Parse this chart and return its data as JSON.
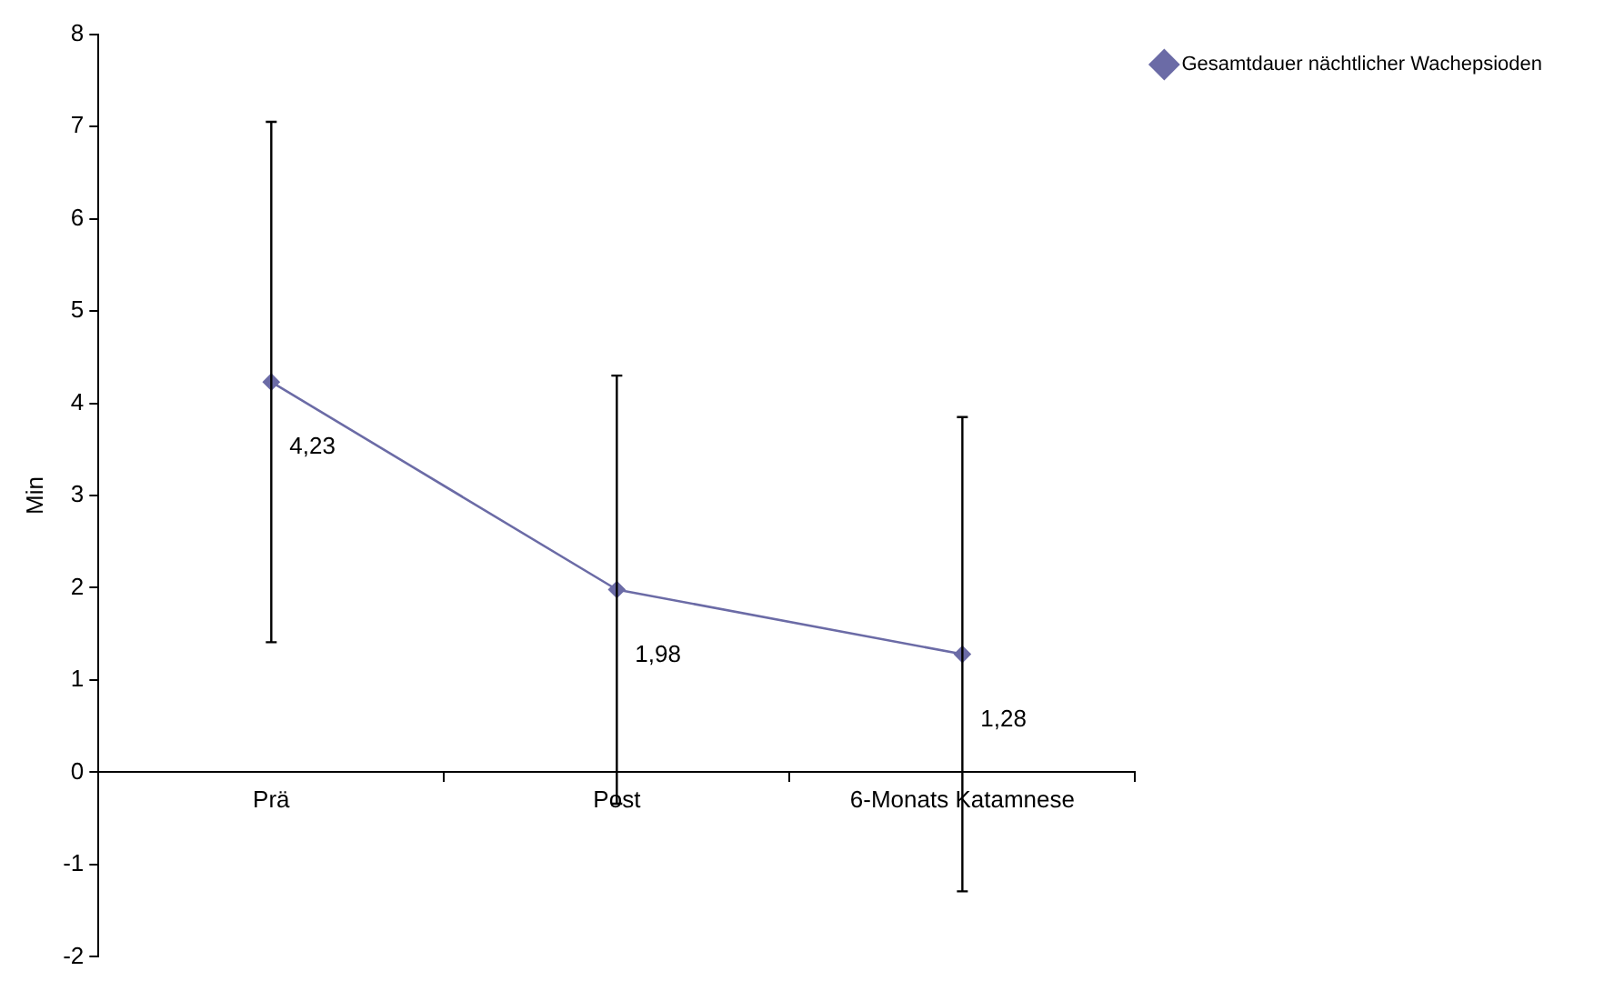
{
  "chart_data": {
    "type": "line",
    "ylabel": "Min",
    "categories": [
      "Prä",
      "Post",
      "6-Monats Katamnese"
    ],
    "series": [
      {
        "name": "Gesamtdauer nächtlicher Wachepsioden",
        "color": "#6b6ba6",
        "values": [
          4.23,
          1.98,
          1.28
        ],
        "errors": [
          2.82,
          2.32,
          2.57
        ],
        "value_labels": [
          "4,23",
          "1,98",
          "1,28"
        ]
      }
    ],
    "ylim": [
      -2,
      8
    ],
    "yticks": [
      -2,
      -1,
      0,
      1,
      2,
      3,
      4,
      5,
      6,
      7,
      8
    ],
    "grid": false,
    "legend": "right",
    "marker": "diamond",
    "line_style": "solid"
  }
}
